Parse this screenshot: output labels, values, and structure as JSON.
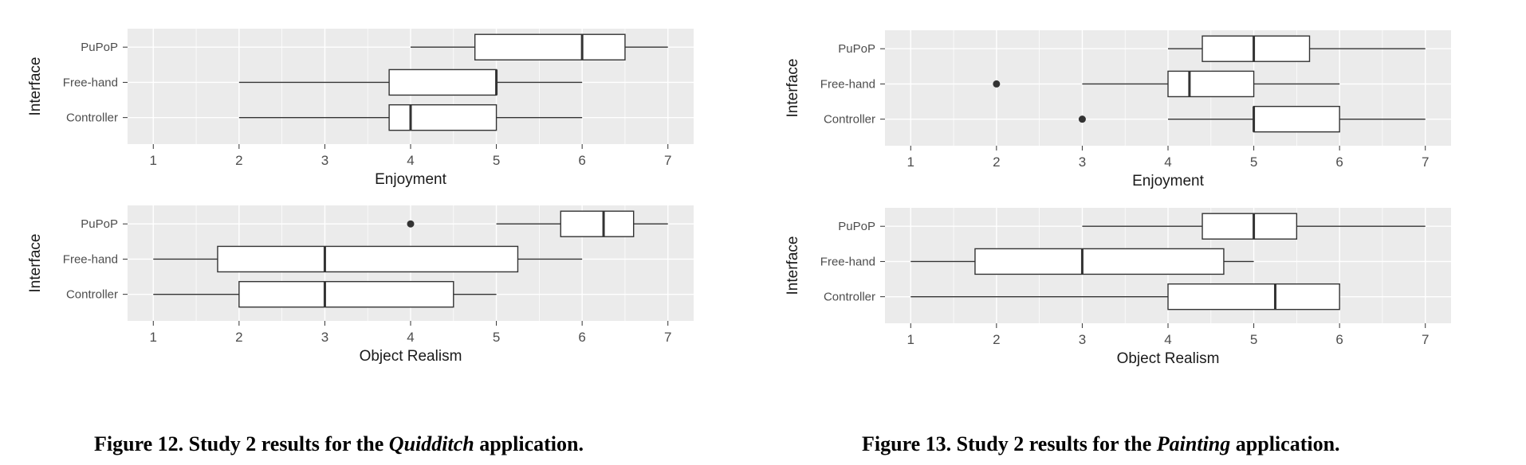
{
  "chart_data": [
    {
      "type": "boxplot",
      "figure": "left",
      "xlabel": "Enjoyment",
      "ylabel": "Interface",
      "xlim": [
        0.7,
        7.3
      ],
      "x_ticks": [
        1,
        2,
        3,
        4,
        5,
        6,
        7
      ],
      "categories": [
        "PuPoP",
        "Free-hand",
        "Controller"
      ],
      "grid": true,
      "boxes": [
        {
          "category": "PuPoP",
          "min": 4,
          "q1": 4.75,
          "median": 6,
          "q3": 6.5,
          "max": 7,
          "outliers": []
        },
        {
          "category": "Free-hand",
          "min": 2,
          "q1": 3.75,
          "median": 5,
          "q3": 5,
          "max": 6,
          "outliers": []
        },
        {
          "category": "Controller",
          "min": 2,
          "q1": 3.75,
          "median": 4,
          "q3": 5,
          "max": 6,
          "outliers": []
        }
      ]
    },
    {
      "type": "boxplot",
      "figure": "left",
      "xlabel": "Object Realism",
      "ylabel": "Interface",
      "xlim": [
        0.7,
        7.3
      ],
      "x_ticks": [
        1,
        2,
        3,
        4,
        5,
        6,
        7
      ],
      "categories": [
        "PuPoP",
        "Free-hand",
        "Controller"
      ],
      "grid": true,
      "boxes": [
        {
          "category": "PuPoP",
          "min": 5,
          "q1": 5.75,
          "median": 6.25,
          "q3": 6.6,
          "max": 7,
          "outliers": [
            4
          ]
        },
        {
          "category": "Free-hand",
          "min": 1,
          "q1": 1.75,
          "median": 3,
          "q3": 5.25,
          "max": 6,
          "outliers": []
        },
        {
          "category": "Controller",
          "min": 1,
          "q1": 2,
          "median": 3,
          "q3": 4.5,
          "max": 5,
          "outliers": []
        }
      ]
    },
    {
      "type": "boxplot",
      "figure": "right",
      "xlabel": "Enjoyment",
      "ylabel": "Interface",
      "xlim": [
        0.7,
        7.3
      ],
      "x_ticks": [
        1,
        2,
        3,
        4,
        5,
        6,
        7
      ],
      "categories": [
        "PuPoP",
        "Free-hand",
        "Controller"
      ],
      "grid": true,
      "boxes": [
        {
          "category": "PuPoP",
          "min": 4,
          "q1": 4.4,
          "median": 5,
          "q3": 5.65,
          "max": 7,
          "outliers": []
        },
        {
          "category": "Free-hand",
          "min": 3,
          "q1": 4,
          "median": 4.25,
          "q3": 5,
          "max": 6,
          "outliers": [
            2
          ]
        },
        {
          "category": "Controller",
          "min": 4,
          "q1": 5,
          "median": 5,
          "q3": 6,
          "max": 7,
          "outliers": [
            3
          ]
        }
      ]
    },
    {
      "type": "boxplot",
      "figure": "right",
      "xlabel": "Object Realism",
      "ylabel": "Interface",
      "xlim": [
        0.7,
        7.3
      ],
      "x_ticks": [
        1,
        2,
        3,
        4,
        5,
        6,
        7
      ],
      "categories": [
        "PuPoP",
        "Free-hand",
        "Controller"
      ],
      "grid": true,
      "boxes": [
        {
          "category": "PuPoP",
          "min": 3,
          "q1": 4.4,
          "median": 5,
          "q3": 5.5,
          "max": 7,
          "outliers": []
        },
        {
          "category": "Free-hand",
          "min": 1,
          "q1": 1.75,
          "median": 3,
          "q3": 4.65,
          "max": 5,
          "outliers": []
        },
        {
          "category": "Controller",
          "min": 1,
          "q1": 4,
          "median": 5.25,
          "q3": 6,
          "max": 6,
          "outliers": []
        }
      ]
    }
  ],
  "captions": {
    "left": {
      "prefix": "Figure 12. Study 2 results for the ",
      "app": "Quidditch",
      "suffix": " application."
    },
    "right": {
      "prefix": "Figure 13. Study 2 results for the ",
      "app": "Painting",
      "suffix": " application."
    }
  },
  "colors": {
    "panel_bg": "#ebebeb",
    "grid": "#ffffff",
    "box_fill": "#ffffff",
    "box_stroke": "#333333",
    "text": "#4d4d4d",
    "axis_title": "#1a1a1a"
  }
}
